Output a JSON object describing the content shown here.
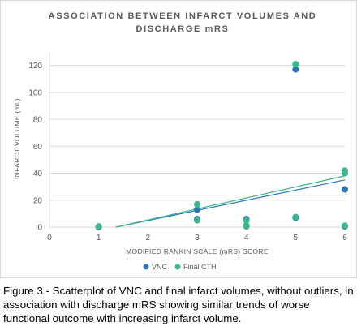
{
  "chart_data": {
    "type": "scatter",
    "title_lines": [
      "ASSOCIATION BETWEEN INFARCT VOLUMES AND",
      "DISCHARGE mRS"
    ],
    "xlabel": "MODIFIED RANKIN SCALE (mRS) SCORE",
    "ylabel": "INFARCT VOLUME (mL)",
    "xlim": [
      0,
      6
    ],
    "ylim": [
      0,
      130
    ],
    "xticks": [
      0,
      1,
      2,
      3,
      4,
      5,
      6
    ],
    "yticks": [
      0,
      20,
      40,
      60,
      80,
      100,
      120
    ],
    "legend_position": "bottom",
    "series": [
      {
        "name": "VNC",
        "color": "#2e75b6",
        "points": [
          [
            1,
            0
          ],
          [
            3,
            13
          ],
          [
            3,
            6
          ],
          [
            4,
            6
          ],
          [
            4,
            1
          ],
          [
            5,
            117
          ],
          [
            5,
            7
          ],
          [
            6,
            28
          ],
          [
            6,
            0.5
          ]
        ],
        "trendline": [
          [
            1.35,
            0
          ],
          [
            6,
            35
          ]
        ]
      },
      {
        "name": "Final CTH",
        "color": "#3cb68a",
        "points": [
          [
            1,
            0.5
          ],
          [
            3,
            17
          ],
          [
            3,
            5
          ],
          [
            4,
            5
          ],
          [
            4,
            0.5
          ],
          [
            5,
            121
          ],
          [
            5,
            7.5
          ],
          [
            6,
            42
          ],
          [
            6,
            40
          ],
          [
            6,
            1
          ]
        ],
        "trendline": [
          [
            1.35,
            0
          ],
          [
            6,
            38
          ]
        ]
      }
    ]
  },
  "caption": "Figure 3 - Scatterplot of VNC and final infarct volumes, without outliers, in association with discharge mRS showing similar trends of worse functional outcome with increasing infarct volume."
}
